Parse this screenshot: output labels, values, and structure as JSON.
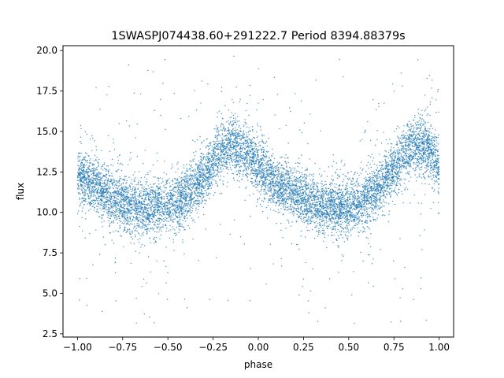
{
  "chart_data": {
    "type": "scatter",
    "title": "1SWASPJ074438.60+291222.7 Period 8394.88379s",
    "xlabel": "phase",
    "ylabel": "flux",
    "xlim": [
      -1.08,
      1.08
    ],
    "ylim": [
      2.3,
      20.3
    ],
    "xticks": [
      -1.0,
      -0.75,
      -0.5,
      -0.25,
      0.0,
      0.25,
      0.5,
      0.75,
      1.0
    ],
    "xtick_labels": [
      "−1.00",
      "−0.75",
      "−0.50",
      "−0.25",
      "0.00",
      "0.25",
      "0.50",
      "0.75",
      "1.00"
    ],
    "yticks": [
      2.5,
      5.0,
      7.5,
      10.0,
      12.5,
      15.0,
      17.5,
      20.0
    ],
    "ytick_labels": [
      "2.5",
      "5.0",
      "7.5",
      "10.0",
      "12.5",
      "15.0",
      "17.5",
      "20.0"
    ],
    "grid": false,
    "marker_color": "#1f77b4",
    "series": [
      {
        "points": [
          [
            -1.0,
            12.3
          ],
          [
            -0.95,
            12.0
          ],
          [
            -0.9,
            11.6
          ],
          [
            -0.85,
            11.2
          ],
          [
            -0.8,
            10.9
          ],
          [
            -0.75,
            10.6
          ],
          [
            -0.7,
            10.4
          ],
          [
            -0.65,
            10.3
          ],
          [
            -0.6,
            10.3
          ],
          [
            -0.55,
            10.3
          ],
          [
            -0.5,
            10.4
          ],
          [
            -0.45,
            10.6
          ],
          [
            -0.4,
            11.0
          ],
          [
            -0.35,
            11.6
          ],
          [
            -0.3,
            12.3
          ],
          [
            -0.25,
            13.1
          ],
          [
            -0.2,
            13.8
          ],
          [
            -0.15,
            14.2
          ],
          [
            -0.1,
            14.0
          ],
          [
            -0.05,
            13.5
          ],
          [
            0.0,
            12.9
          ],
          [
            0.05,
            12.4
          ],
          [
            0.1,
            11.9
          ],
          [
            0.15,
            11.5
          ],
          [
            0.2,
            11.1
          ],
          [
            0.25,
            10.8
          ],
          [
            0.3,
            10.6
          ],
          [
            0.35,
            10.4
          ],
          [
            0.4,
            10.3
          ],
          [
            0.45,
            10.3
          ],
          [
            0.5,
            10.3
          ],
          [
            0.55,
            10.5
          ],
          [
            0.6,
            10.8
          ],
          [
            0.65,
            11.3
          ],
          [
            0.7,
            12.0
          ],
          [
            0.75,
            12.8
          ],
          [
            0.8,
            13.5
          ],
          [
            0.85,
            14.1
          ],
          [
            0.9,
            14.2
          ],
          [
            0.95,
            13.8
          ],
          [
            1.0,
            13.0
          ]
        ]
      }
    ]
  }
}
